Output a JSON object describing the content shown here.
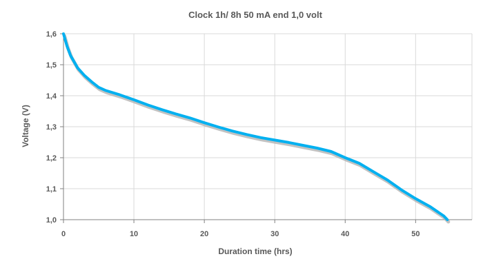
{
  "chart_data": {
    "type": "line",
    "title": "Clock 1h/ 8h 50 mA end 1,0 volt",
    "xlabel": "Duration time (hrs)",
    "ylabel": "Voltage (V)",
    "xlim": [
      0,
      58
    ],
    "ylim": [
      1.0,
      1.6
    ],
    "x_ticks": [
      0,
      10,
      20,
      30,
      40,
      50
    ],
    "x_tick_labels": [
      "0",
      "10",
      "20",
      "30",
      "40",
      "50"
    ],
    "y_ticks": [
      1.0,
      1.1,
      1.2,
      1.3,
      1.4,
      1.5,
      1.6
    ],
    "y_tick_labels": [
      "1,0",
      "1,1",
      "1,2",
      "1,3",
      "1,4",
      "1,5",
      "1,6"
    ],
    "grid": true,
    "legend": "none",
    "series": [
      {
        "color": "#00b0f0",
        "shadow_color": "#b3b3b3",
        "x": [
          0,
          0.5,
          1,
          1.5,
          2,
          3,
          4,
          5,
          6,
          8,
          10,
          12,
          14,
          16,
          18,
          20,
          22,
          24,
          26,
          28,
          30,
          32,
          34,
          36,
          38,
          39,
          40,
          42,
          44,
          46,
          48,
          50,
          52,
          54,
          54.5
        ],
        "y": [
          1.6,
          1.56,
          1.53,
          1.51,
          1.49,
          1.465,
          1.445,
          1.427,
          1.417,
          1.403,
          1.387,
          1.37,
          1.355,
          1.341,
          1.328,
          1.313,
          1.299,
          1.286,
          1.275,
          1.265,
          1.257,
          1.249,
          1.24,
          1.231,
          1.22,
          1.21,
          1.2,
          1.182,
          1.155,
          1.128,
          1.096,
          1.068,
          1.043,
          1.012,
          1.0
        ]
      }
    ]
  }
}
